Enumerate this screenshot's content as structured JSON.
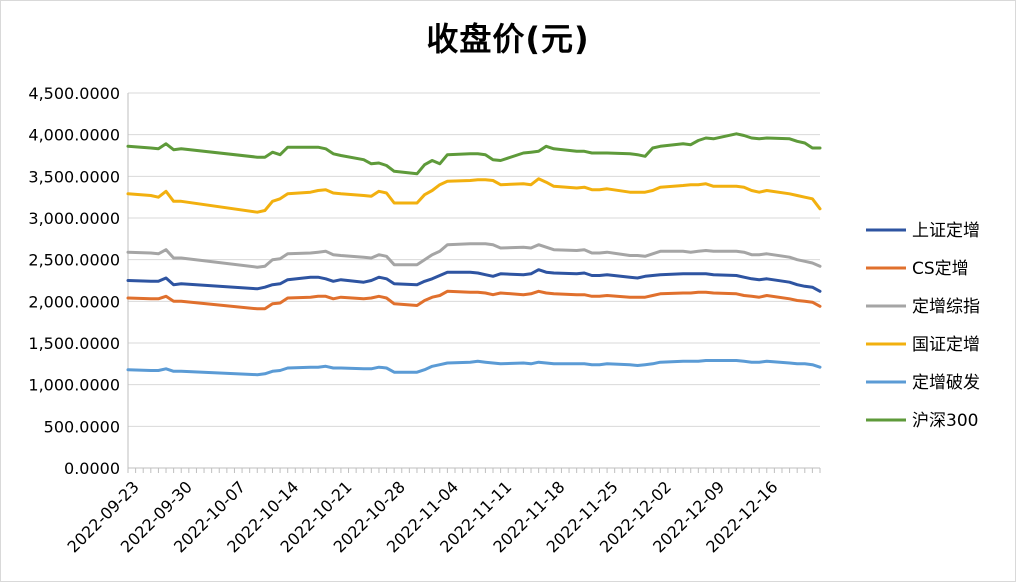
{
  "chart_data": {
    "type": "line",
    "title": "收盘价(元)",
    "xlabel": "",
    "ylabel": "",
    "ylim": [
      0,
      4500
    ],
    "yticks": [
      "0.0000",
      "500.0000",
      "1,000.0000",
      "1,500.0000",
      "2,000.0000",
      "2,500.0000",
      "3,000.0000",
      "3,500.0000",
      "4,000.0000",
      "4,500.0000"
    ],
    "ytick_values": [
      0,
      500,
      1000,
      1500,
      2000,
      2500,
      3000,
      3500,
      4000,
      4500
    ],
    "xlim": [
      "2022-09-23",
      "2022-12-23"
    ],
    "xticks": [
      "2022-09-23",
      "2022-09-30",
      "2022-10-07",
      "2022-10-14",
      "2022-10-21",
      "2022-10-28",
      "2022-11-04",
      "2022-11-11",
      "2022-11-18",
      "2022-11-25",
      "2022-12-02",
      "2022-12-09",
      "2022-12-16"
    ],
    "grid": "horizontal",
    "legend_position": "right",
    "dates": [
      "2022-09-23",
      "2022-09-26",
      "2022-09-27",
      "2022-09-28",
      "2022-09-29",
      "2022-09-30",
      "2022-10-10",
      "2022-10-11",
      "2022-10-12",
      "2022-10-13",
      "2022-10-14",
      "2022-10-17",
      "2022-10-18",
      "2022-10-19",
      "2022-10-20",
      "2022-10-21",
      "2022-10-24",
      "2022-10-25",
      "2022-10-26",
      "2022-10-27",
      "2022-10-28",
      "2022-10-31",
      "2022-11-01",
      "2022-11-02",
      "2022-11-03",
      "2022-11-04",
      "2022-11-07",
      "2022-11-08",
      "2022-11-09",
      "2022-11-10",
      "2022-11-11",
      "2022-11-14",
      "2022-11-15",
      "2022-11-16",
      "2022-11-17",
      "2022-11-18",
      "2022-11-21",
      "2022-11-22",
      "2022-11-23",
      "2022-11-24",
      "2022-11-25",
      "2022-11-28",
      "2022-11-29",
      "2022-11-30",
      "2022-12-01",
      "2022-12-02",
      "2022-12-05",
      "2022-12-06",
      "2022-12-07",
      "2022-12-08",
      "2022-12-09",
      "2022-12-12",
      "2022-12-13",
      "2022-12-14",
      "2022-12-15",
      "2022-12-16",
      "2022-12-19",
      "2022-12-20",
      "2022-12-21",
      "2022-12-22",
      "2022-12-23"
    ],
    "series": [
      {
        "name": "上证定增",
        "color": "#2E54A1",
        "values": [
          2250,
          2240,
          2240,
          2280,
          2200,
          2210,
          2150,
          2170,
          2200,
          2210,
          2260,
          2290,
          2290,
          2270,
          2240,
          2260,
          2230,
          2250,
          2290,
          2270,
          2210,
          2200,
          2240,
          2270,
          2310,
          2350,
          2350,
          2340,
          2320,
          2300,
          2330,
          2320,
          2330,
          2380,
          2350,
          2340,
          2330,
          2340,
          2310,
          2310,
          2320,
          2290,
          2280,
          2300,
          2310,
          2320,
          2330,
          2330,
          2330,
          2330,
          2320,
          2310,
          2290,
          2270,
          2260,
          2270,
          2230,
          2200,
          2180,
          2170,
          2120
        ]
      },
      {
        "name": "CS定增",
        "color": "#E0702D",
        "values": [
          2040,
          2030,
          2030,
          2060,
          2000,
          2000,
          1910,
          1910,
          1970,
          1980,
          2040,
          2050,
          2060,
          2060,
          2030,
          2050,
          2030,
          2040,
          2060,
          2040,
          1970,
          1950,
          2010,
          2050,
          2070,
          2120,
          2110,
          2110,
          2100,
          2080,
          2100,
          2080,
          2090,
          2120,
          2100,
          2090,
          2080,
          2080,
          2060,
          2060,
          2070,
          2050,
          2050,
          2050,
          2070,
          2090,
          2100,
          2100,
          2110,
          2110,
          2100,
          2090,
          2070,
          2060,
          2050,
          2070,
          2030,
          2010,
          2000,
          1990,
          1940
        ]
      },
      {
        "name": "定增综指",
        "color": "#A5A5A5",
        "values": [
          2590,
          2580,
          2570,
          2620,
          2520,
          2520,
          2410,
          2420,
          2500,
          2510,
          2570,
          2580,
          2590,
          2600,
          2560,
          2550,
          2530,
          2520,
          2560,
          2540,
          2440,
          2440,
          2500,
          2560,
          2600,
          2680,
          2690,
          2690,
          2690,
          2680,
          2640,
          2650,
          2640,
          2680,
          2650,
          2620,
          2610,
          2620,
          2580,
          2580,
          2590,
          2550,
          2550,
          2540,
          2570,
          2600,
          2600,
          2590,
          2600,
          2610,
          2600,
          2600,
          2590,
          2560,
          2560,
          2570,
          2530,
          2500,
          2480,
          2460,
          2420
        ]
      },
      {
        "name": "国证定增",
        "color": "#F2B00F",
        "values": [
          3290,
          3270,
          3250,
          3320,
          3200,
          3200,
          3070,
          3090,
          3200,
          3230,
          3290,
          3310,
          3330,
          3340,
          3300,
          3290,
          3270,
          3260,
          3320,
          3300,
          3180,
          3180,
          3280,
          3330,
          3400,
          3440,
          3450,
          3460,
          3460,
          3450,
          3400,
          3410,
          3400,
          3470,
          3430,
          3380,
          3360,
          3370,
          3340,
          3340,
          3350,
          3310,
          3310,
          3310,
          3330,
          3370,
          3390,
          3400,
          3400,
          3410,
          3380,
          3380,
          3370,
          3330,
          3310,
          3330,
          3290,
          3270,
          3250,
          3230,
          3110
        ]
      },
      {
        "name": "定增破发",
        "color": "#5B9BD5",
        "values": [
          1180,
          1170,
          1170,
          1190,
          1160,
          1160,
          1120,
          1130,
          1160,
          1170,
          1200,
          1210,
          1210,
          1220,
          1200,
          1200,
          1190,
          1190,
          1210,
          1200,
          1150,
          1150,
          1180,
          1220,
          1240,
          1260,
          1270,
          1280,
          1270,
          1260,
          1250,
          1260,
          1250,
          1270,
          1260,
          1250,
          1250,
          1250,
          1240,
          1240,
          1250,
          1240,
          1230,
          1240,
          1250,
          1270,
          1280,
          1280,
          1280,
          1290,
          1290,
          1290,
          1280,
          1270,
          1270,
          1280,
          1260,
          1250,
          1250,
          1240,
          1210
        ]
      },
      {
        "name": "沪深300",
        "color": "#5E9A3A",
        "values": [
          3860,
          3840,
          3830,
          3890,
          3820,
          3830,
          3730,
          3730,
          3790,
          3760,
          3850,
          3850,
          3850,
          3830,
          3770,
          3750,
          3700,
          3650,
          3660,
          3630,
          3560,
          3530,
          3640,
          3690,
          3650,
          3760,
          3770,
          3770,
          3760,
          3700,
          3690,
          3780,
          3790,
          3800,
          3860,
          3830,
          3800,
          3800,
          3780,
          3780,
          3780,
          3770,
          3760,
          3740,
          3840,
          3860,
          3890,
          3880,
          3930,
          3960,
          3950,
          4010,
          3990,
          3960,
          3950,
          3960,
          3950,
          3920,
          3900,
          3840,
          3840
        ]
      }
    ]
  }
}
